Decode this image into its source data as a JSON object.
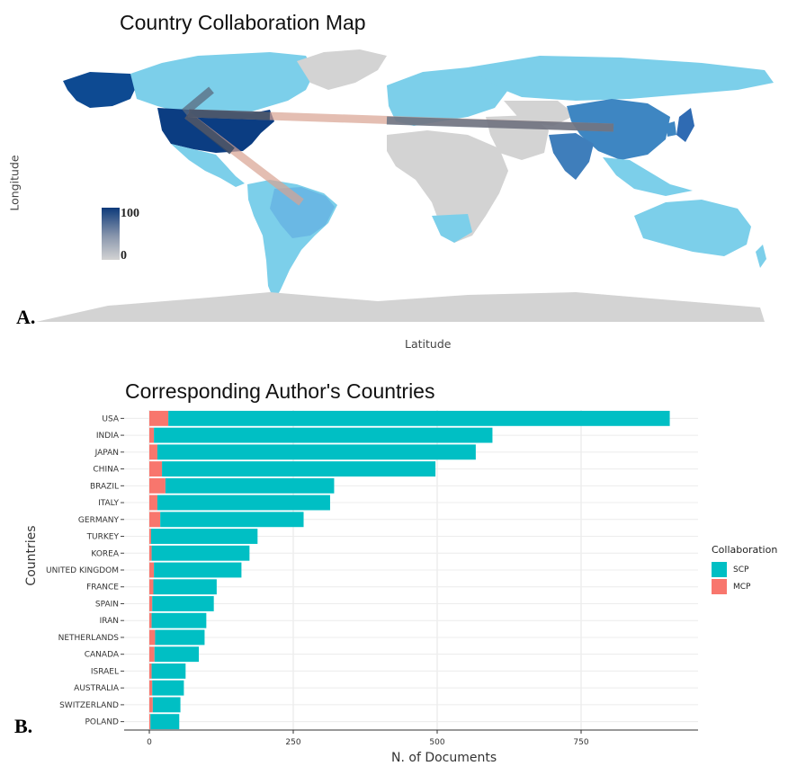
{
  "panel_a": {
    "label": "A.",
    "title": "Country Collaboration Map",
    "ylabel": "Longitude",
    "xlabel": "Latitude",
    "colorbar": {
      "max_label": "100",
      "min_label": "0",
      "high_color": "#0d3a7a",
      "low_color": "#d3d3d3"
    }
  },
  "panel_b": {
    "label": "B.",
    "title": "Corresponding Author's Countries",
    "ylabel": "Countries",
    "xlabel": "N. of Documents",
    "legend": {
      "title": "Collaboration",
      "items": [
        {
          "name": "SCP",
          "color": "#00bfc4"
        },
        {
          "name": "MCP",
          "color": "#f8766d"
        }
      ]
    }
  },
  "chart_data": [
    {
      "type": "map",
      "title": "Country Collaboration Map",
      "xlabel": "Latitude",
      "ylabel": "Longitude",
      "color_scale": {
        "min": 0,
        "max": 100,
        "low_color": "#d3d3d3",
        "high_color": "#0d3a7a"
      },
      "collaboration_links": [
        [
          "USA",
          "Canada"
        ],
        [
          "USA",
          "Brazil"
        ],
        [
          "USA",
          "China"
        ],
        [
          "USA",
          "Italy"
        ]
      ]
    },
    {
      "type": "bar",
      "orientation": "horizontal",
      "stacked": true,
      "title": "Corresponding Author's Countries",
      "xlabel": "N. of Documents",
      "ylabel": "Countries",
      "xlim": [
        0,
        960
      ],
      "xticks": [
        0,
        250,
        500,
        750
      ],
      "grid": true,
      "legend_position": "right",
      "categories": [
        "USA",
        "INDIA",
        "JAPAN",
        "CHINA",
        "BRAZIL",
        "ITALY",
        "GERMANY",
        "TURKEY",
        "KOREA",
        "UNITED KINGDOM",
        "FRANCE",
        "SPAIN",
        "IRAN",
        "NETHERLANDS",
        "CANADA",
        "ISRAEL",
        "AUSTRALIA",
        "SWITZERLAND",
        "POLAND"
      ],
      "series": [
        {
          "name": "MCP",
          "color": "#f8766d",
          "values": [
            33,
            8,
            14,
            22,
            28,
            14,
            19,
            3,
            4,
            8,
            7,
            5,
            4,
            10,
            9,
            4,
            5,
            6,
            2
          ]
        },
        {
          "name": "SCP",
          "color": "#00bfc4",
          "values": [
            871,
            588,
            553,
            475,
            293,
            300,
            249,
            185,
            170,
            152,
            110,
            107,
            95,
            86,
            77,
            59,
            55,
            48,
            50
          ]
        }
      ]
    }
  ]
}
